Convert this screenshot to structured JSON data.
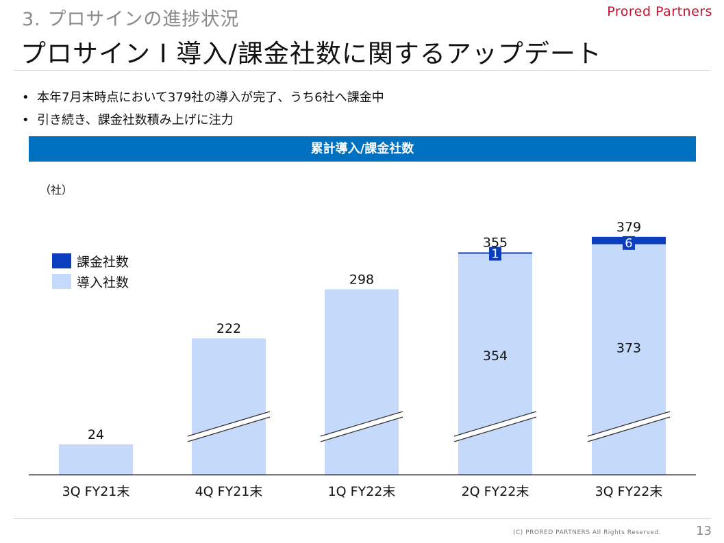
{
  "header": {
    "section_title": "3. プロサインの進捗状況",
    "brand": "Prored Partners",
    "page_title": "プロサイン I 導入/課金社数に関するアップデート"
  },
  "bullets": [
    "本年7月末時点において379社の導入が完了、うち6社へ課金中",
    "引き続き、課金社数積み上げに注力"
  ],
  "chart_data": {
    "type": "bar",
    "stacked": true,
    "title": "累計導入/課金社数",
    "unit_label": "（社）",
    "categories": [
      "3Q FY21末",
      "4Q FY21末",
      "1Q FY22末",
      "2Q FY22末",
      "3Q FY22末"
    ],
    "series": [
      {
        "name": "導入社数",
        "values": [
          24,
          222,
          298,
          354,
          373
        ],
        "color": "#c5d9fa"
      },
      {
        "name": "課金社数",
        "values": [
          0,
          0,
          0,
          1,
          6
        ],
        "color": "#0b3dbf"
      }
    ],
    "totals": [
      24,
      222,
      298,
      355,
      379
    ],
    "axis_break": [
      false,
      true,
      true,
      true,
      true
    ],
    "legend": [
      {
        "name": "課金社数",
        "color": "#0b3dbf"
      },
      {
        "name": "導入社数",
        "color": "#c5d9fa"
      }
    ]
  },
  "footer": {
    "copyright": "(C) PRORED PARTNERS All Rights Reserved.",
    "page_number": "13"
  }
}
